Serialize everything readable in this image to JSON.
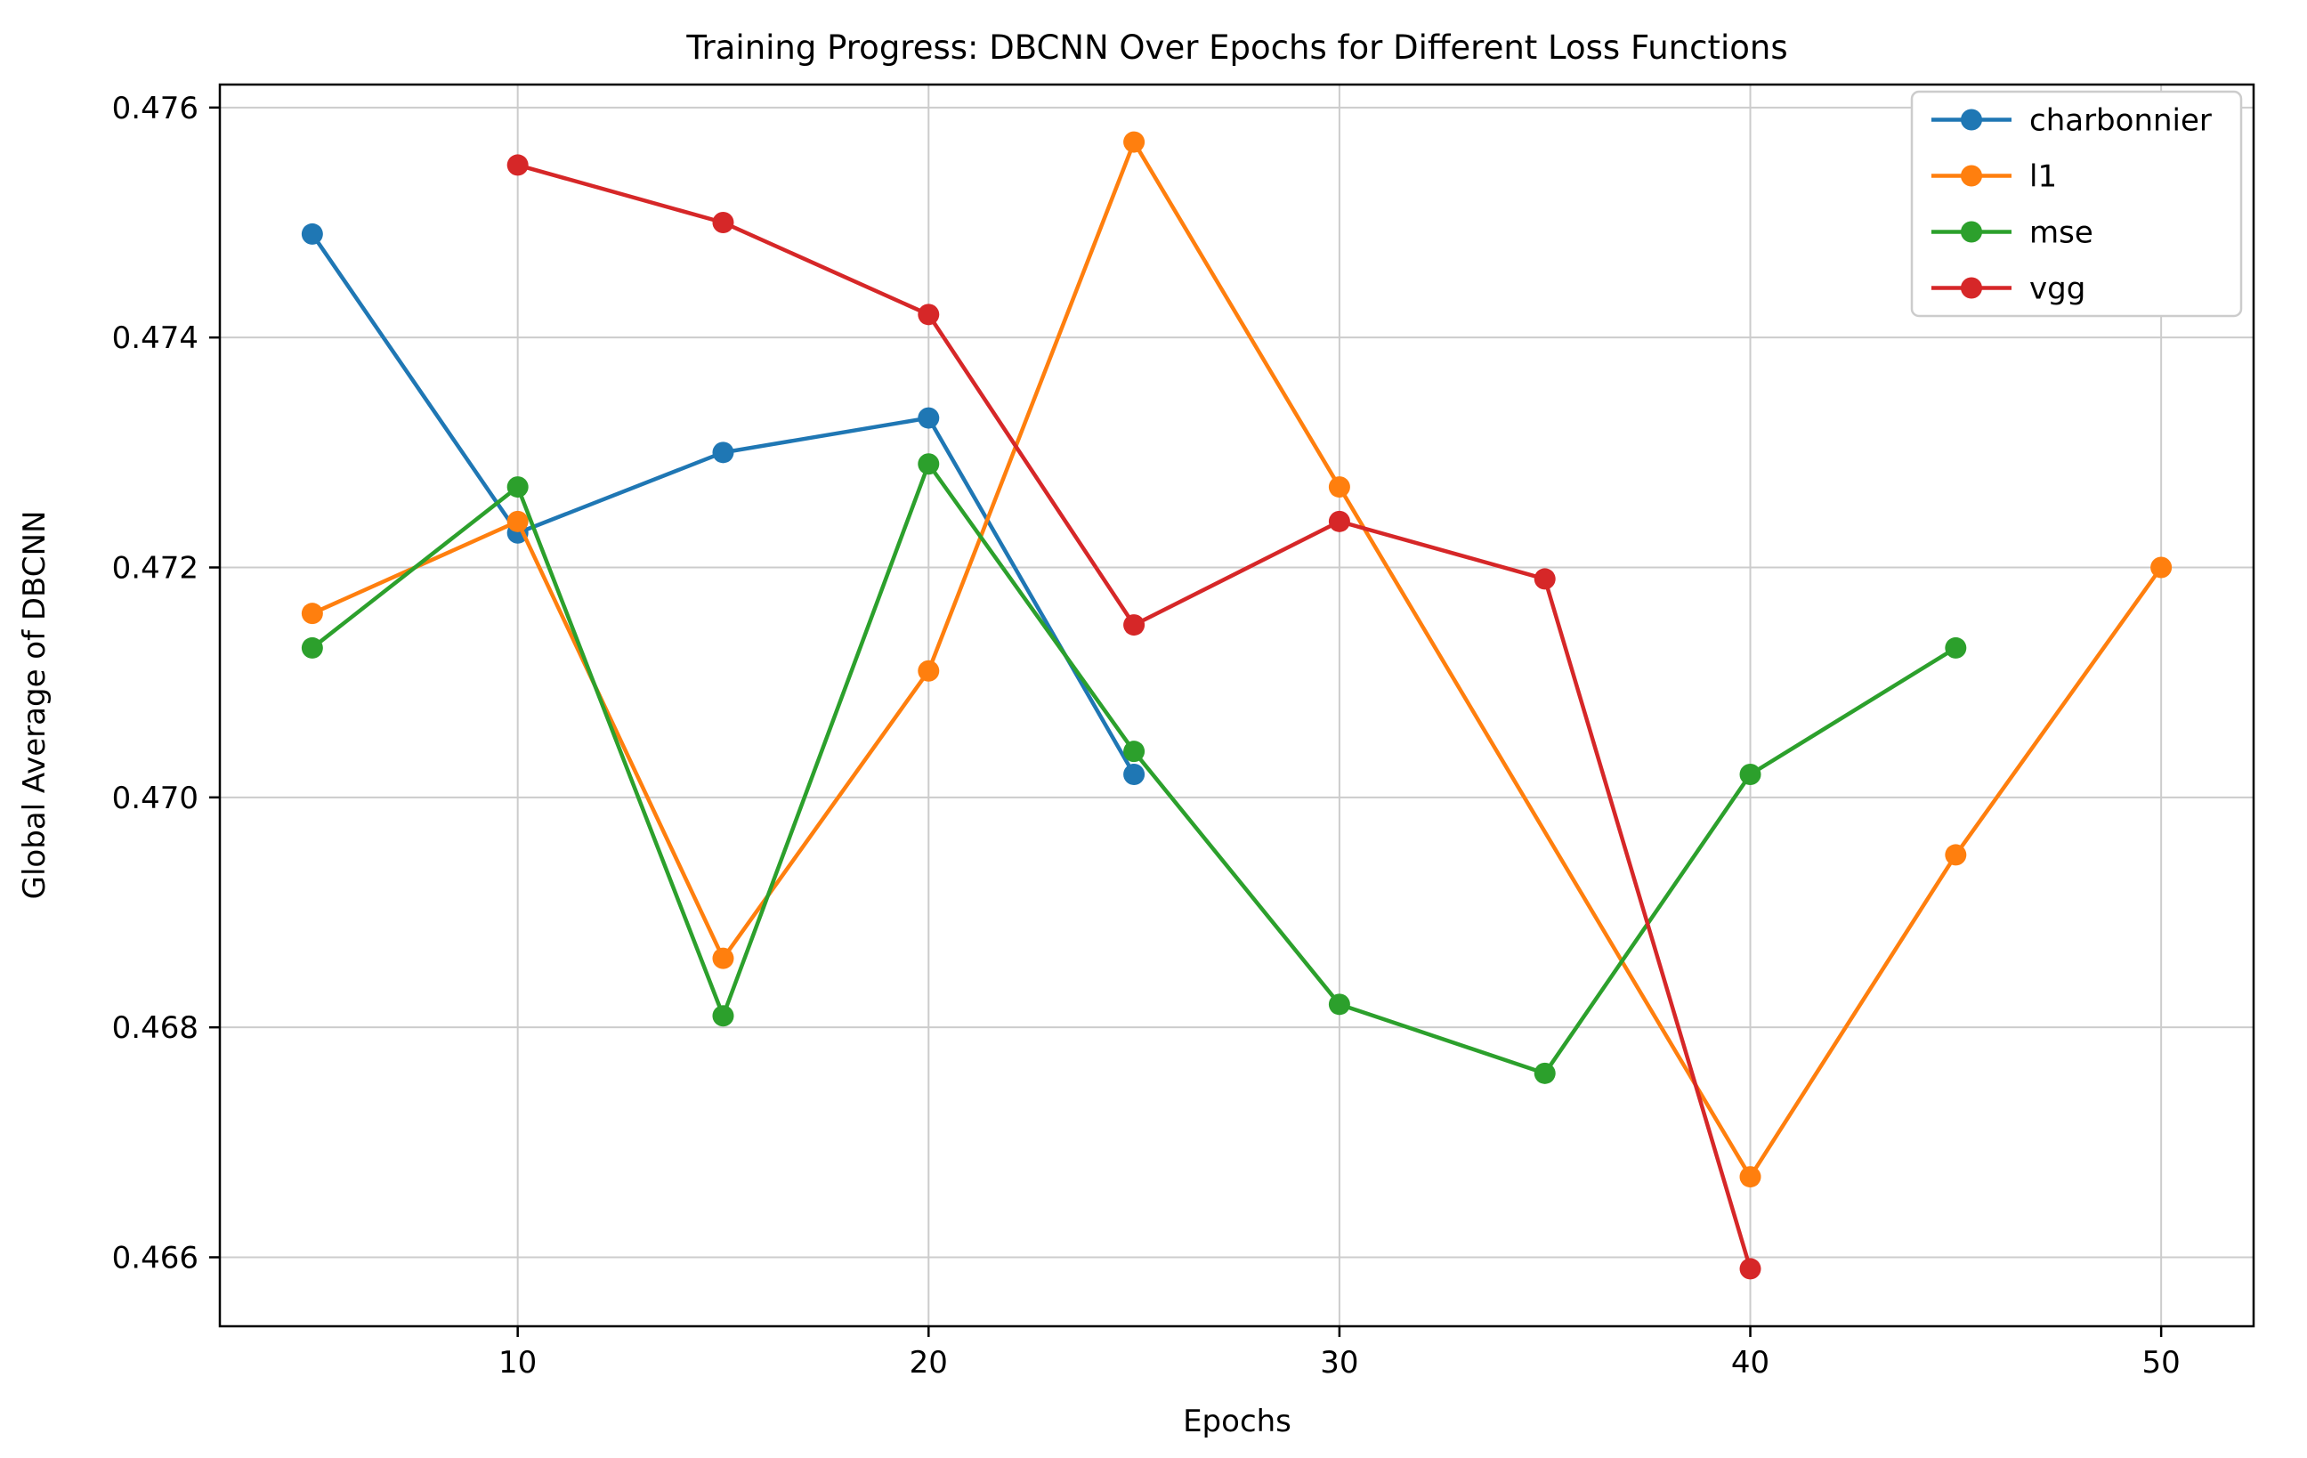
{
  "chart_data": {
    "type": "line",
    "title": "Training Progress: DBCNN Over Epochs for Different Loss Functions",
    "xlabel": "Epochs",
    "ylabel": "Global Average of DBCNN",
    "xlim": [
      2.75,
      52.25
    ],
    "ylim": [
      0.4654,
      0.4762
    ],
    "grid": true,
    "legend_position": "upper right",
    "xticks": {
      "values": [
        10,
        20,
        30,
        40,
        50
      ],
      "labels": [
        "10",
        "20",
        "30",
        "40",
        "50"
      ]
    },
    "yticks": {
      "values": [
        0.466,
        0.468,
        0.47,
        0.472,
        0.474,
        0.476
      ],
      "labels": [
        "0.466",
        "0.468",
        "0.470",
        "0.472",
        "0.474",
        "0.476"
      ]
    },
    "series": [
      {
        "name": "charbonnier",
        "color": "#1f77b4",
        "x": [
          5,
          10,
          15,
          20,
          25
        ],
        "y": [
          0.4749,
          0.4723,
          0.473,
          0.4733,
          0.4702
        ]
      },
      {
        "name": "l1",
        "color": "#ff7f0e",
        "x": [
          5,
          10,
          15,
          20,
          25,
          30,
          40,
          45,
          50
        ],
        "y": [
          0.4716,
          0.4724,
          0.4686,
          0.4711,
          0.4757,
          0.4727,
          0.4667,
          0.4695,
          0.472
        ]
      },
      {
        "name": "mse",
        "color": "#2ca02c",
        "x": [
          5,
          10,
          15,
          20,
          25,
          30,
          35,
          40,
          45
        ],
        "y": [
          0.4713,
          0.4727,
          0.4681,
          0.4729,
          0.4704,
          0.4682,
          0.4676,
          0.4702,
          0.4713
        ]
      },
      {
        "name": "vgg",
        "color": "#d62728",
        "x": [
          10,
          15,
          20,
          25,
          30,
          35,
          40
        ],
        "y": [
          0.4755,
          0.475,
          0.4742,
          0.4715,
          0.4724,
          0.4719,
          0.4659
        ]
      }
    ]
  }
}
